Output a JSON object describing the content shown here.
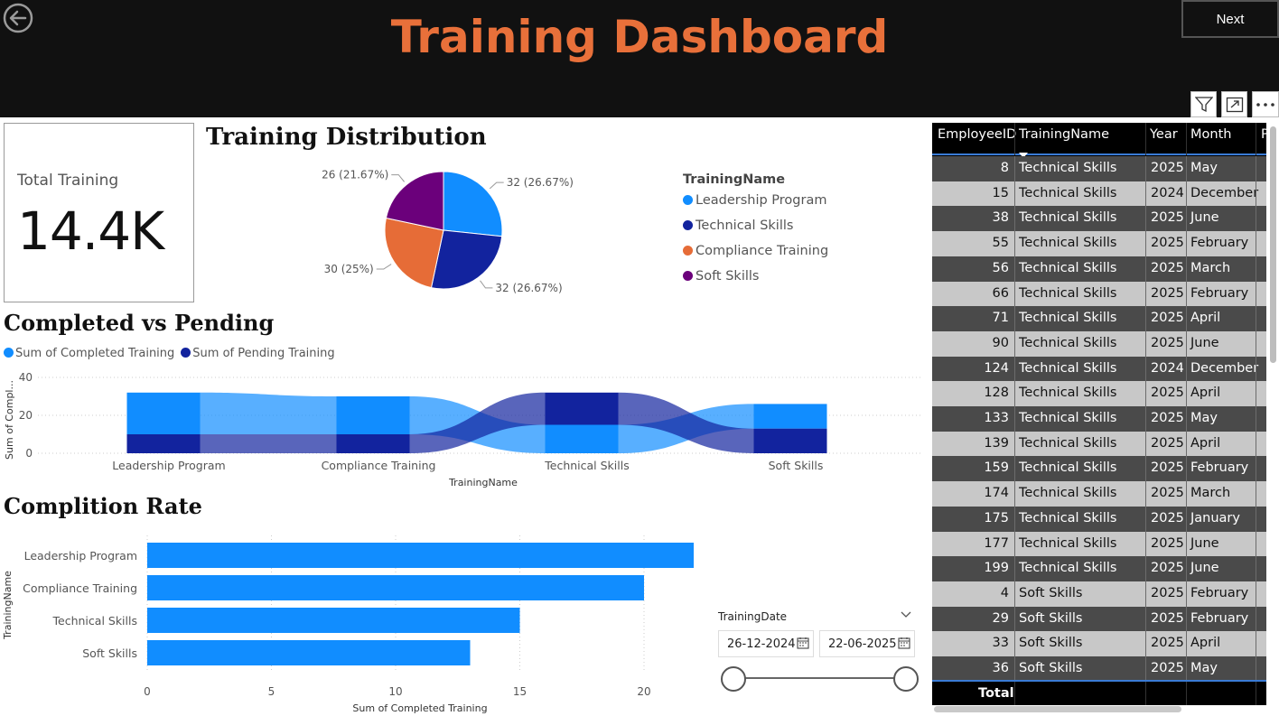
{
  "header": {
    "title": "Training Dashboard",
    "next_label": "Next",
    "back_icon": "back-arrow-circle-icon",
    "visual_icons": [
      "filter-icon",
      "focus-mode-icon",
      "more-options-icon"
    ]
  },
  "colors": {
    "accent": "#e8703a",
    "header_bg": "#111111",
    "leadership": "#118dff",
    "technical": "#12239e",
    "compliance": "#e66c37",
    "soft": "#6b007b"
  },
  "kpi": {
    "label": "Total Training",
    "value": "14.4K"
  },
  "distribution": {
    "title": "Training Distribution",
    "legend_title": "TrainingName"
  },
  "completed_pending": {
    "title": "Completed vs Pending",
    "legend": [
      "Sum of Completed Training",
      "Sum of Pending Training"
    ]
  },
  "completion_rate": {
    "title": "Complition Rate"
  },
  "slicer": {
    "label": "TrainingDate",
    "start": "26-12-2024",
    "end": "22-06-2025"
  },
  "table": {
    "columns": [
      "EmployeeID",
      "TrainingName",
      "Year",
      "Month",
      "P"
    ],
    "rows": [
      [
        "8",
        "Technical Skills",
        "2025",
        "May"
      ],
      [
        "15",
        "Technical Skills",
        "2024",
        "December"
      ],
      [
        "38",
        "Technical Skills",
        "2025",
        "June"
      ],
      [
        "55",
        "Technical Skills",
        "2025",
        "February"
      ],
      [
        "56",
        "Technical Skills",
        "2025",
        "March"
      ],
      [
        "66",
        "Technical Skills",
        "2025",
        "February"
      ],
      [
        "71",
        "Technical Skills",
        "2025",
        "April"
      ],
      [
        "90",
        "Technical Skills",
        "2025",
        "June"
      ],
      [
        "124",
        "Technical Skills",
        "2024",
        "December"
      ],
      [
        "128",
        "Technical Skills",
        "2025",
        "April"
      ],
      [
        "133",
        "Technical Skills",
        "2025",
        "May"
      ],
      [
        "139",
        "Technical Skills",
        "2025",
        "April"
      ],
      [
        "159",
        "Technical Skills",
        "2025",
        "February"
      ],
      [
        "174",
        "Technical Skills",
        "2025",
        "March"
      ],
      [
        "175",
        "Technical Skills",
        "2025",
        "January"
      ],
      [
        "177",
        "Technical Skills",
        "2025",
        "June"
      ],
      [
        "199",
        "Technical Skills",
        "2025",
        "June"
      ],
      [
        "4",
        "Soft Skills",
        "2025",
        "February"
      ],
      [
        "29",
        "Soft Skills",
        "2025",
        "February"
      ],
      [
        "33",
        "Soft Skills",
        "2025",
        "April"
      ],
      [
        "36",
        "Soft Skills",
        "2025",
        "May"
      ]
    ],
    "total_label": "Total"
  },
  "chart_data": [
    {
      "type": "pie",
      "title": "Training Distribution",
      "categories": [
        "Leadership Program",
        "Technical Skills",
        "Compliance Training",
        "Soft Skills"
      ],
      "values": [
        32,
        32,
        30,
        26
      ],
      "labels": [
        "32 (26.67%)",
        "32 (26.67%)",
        "30 (25%)",
        "26 (21.67%)"
      ],
      "legend_title": "TrainingName",
      "legend_position": "right"
    },
    {
      "type": "bar",
      "subtype": "stacked-ribbon",
      "title": "Completed vs Pending",
      "categories": [
        "Leadership Program",
        "Compliance Training",
        "Technical Skills",
        "Soft Skills"
      ],
      "series": [
        {
          "name": "Sum of Completed Training",
          "values": [
            22,
            20,
            15,
            13
          ]
        },
        {
          "name": "Sum of Pending Training",
          "values": [
            10,
            10,
            17,
            13
          ]
        }
      ],
      "xlabel": "TrainingName",
      "ylabel": "Sum of Compl...",
      "ylim": [
        0,
        40
      ],
      "yticks": [
        0,
        20,
        40
      ],
      "legend_position": "top-left"
    },
    {
      "type": "bar",
      "orientation": "horizontal",
      "title": "Complition Rate",
      "categories": [
        "Leadership Program",
        "Compliance Training",
        "Technical Skills",
        "Soft Skills"
      ],
      "values": [
        22,
        20,
        15,
        13
      ],
      "xlabel": "Sum of Completed Training",
      "ylabel": "TrainingName",
      "xlim": [
        0,
        22
      ],
      "xticks": [
        0,
        5,
        10,
        15,
        20
      ]
    }
  ]
}
